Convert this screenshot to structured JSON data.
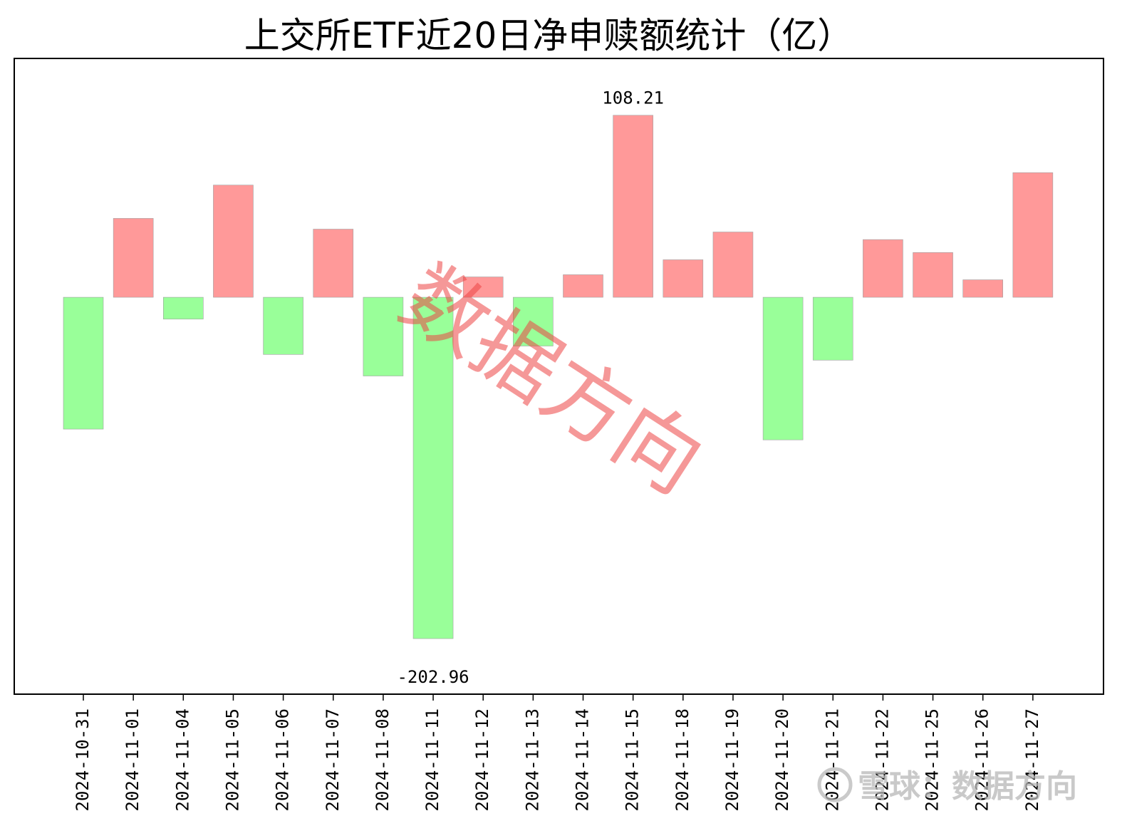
{
  "chart_data": {
    "type": "bar",
    "title": "上交所ETF近20日净申赎额统计（亿）",
    "xlabel": "",
    "ylabel": "",
    "categories": [
      "2024-10-31",
      "2024-11-01",
      "2024-11-04",
      "2024-11-05",
      "2024-11-06",
      "2024-11-07",
      "2024-11-08",
      "2024-11-11",
      "2024-11-12",
      "2024-11-13",
      "2024-11-14",
      "2024-11-15",
      "2024-11-18",
      "2024-11-19",
      "2024-11-20",
      "2024-11-21",
      "2024-11-22",
      "2024-11-25",
      "2024-11-26",
      "2024-11-27"
    ],
    "values": [
      -78.4,
      46.9,
      -13.0,
      66.7,
      -34.0,
      40.5,
      -46.8,
      -202.96,
      12.1,
      -29.0,
      13.4,
      108.21,
      22.3,
      38.8,
      -84.8,
      -37.4,
      34.3,
      26.6,
      10.4,
      74.1
    ],
    "ylim": [
      -236,
      142
    ],
    "grid": false,
    "annotations": [
      {
        "category": "2024-11-15",
        "text": "108.21"
      },
      {
        "category": "2024-11-11",
        "text": "-202.96"
      }
    ],
    "colors": {
      "positive": "#ff9999",
      "negative": "#99ff99",
      "bar_edge": "#a0a0a0",
      "frame": "#000000"
    }
  },
  "watermark": "数据方向",
  "credit": "雪球：数据方向"
}
